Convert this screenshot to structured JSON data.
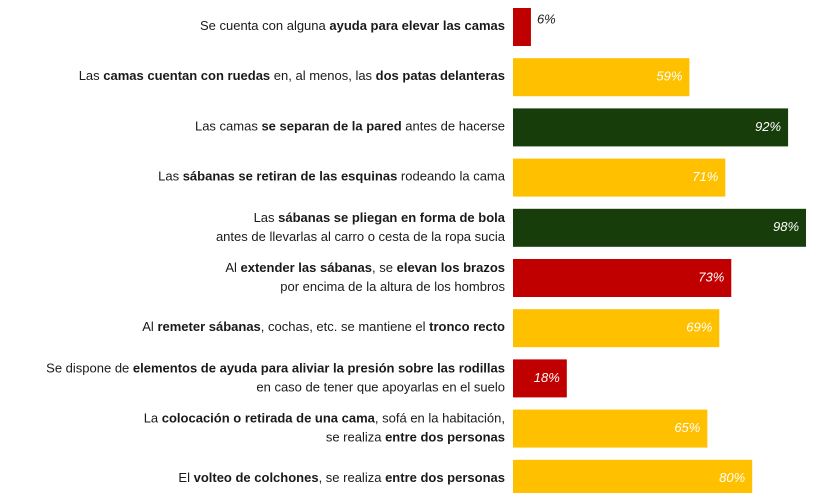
{
  "chart_data": {
    "type": "bar",
    "orientation": "horizontal",
    "categories": [
      [
        [
          {
            "text": "Se cuenta con alguna "
          },
          {
            "text": "ayuda para elevar las camas",
            "bold": true
          }
        ]
      ],
      [
        [
          {
            "text": "Las "
          },
          {
            "text": "camas cuentan con ruedas",
            "bold": true
          },
          {
            "text": " en, al menos, las "
          },
          {
            "text": "dos patas delanteras",
            "bold": true
          }
        ]
      ],
      [
        [
          {
            "text": "Las camas "
          },
          {
            "text": "se separan de la pared",
            "bold": true
          },
          {
            "text": " antes de hacerse"
          }
        ]
      ],
      [
        [
          {
            "text": "Las "
          },
          {
            "text": "sábanas se retiran de las esquinas",
            "bold": true
          },
          {
            "text": " rodeando la cama"
          }
        ]
      ],
      [
        [
          {
            "text": "Las "
          },
          {
            "text": "sábanas se pliegan en forma de bola",
            "bold": true
          }
        ],
        [
          {
            "text": "antes de llevarlas al carro o cesta de la ropa sucia"
          }
        ]
      ],
      [
        [
          {
            "text": "Al "
          },
          {
            "text": "extender las sábanas",
            "bold": true
          },
          {
            "text": ", se "
          },
          {
            "text": "elevan los brazos",
            "bold": true
          }
        ],
        [
          {
            "text": "por encima de la altura de los hombros"
          }
        ]
      ],
      [
        [
          {
            "text": "Al "
          },
          {
            "text": "remeter sábanas",
            "bold": true
          },
          {
            "text": ", cochas, etc. se mantiene el "
          },
          {
            "text": "tronco recto",
            "bold": true
          }
        ]
      ],
      [
        [
          {
            "text": "Se dispone de "
          },
          {
            "text": "elementos de ayuda para aliviar la presión sobre las rodillas",
            "bold": true
          }
        ],
        [
          {
            "text": "en caso de tener que apoyarlas en el suelo"
          }
        ]
      ],
      [
        [
          {
            "text": "La "
          },
          {
            "text": "colocación o retirada de una cama",
            "bold": true
          },
          {
            "text": ", sofá en la habitación,"
          }
        ],
        [
          {
            "text": "se realiza "
          },
          {
            "text": "entre dos personas",
            "bold": true
          }
        ]
      ],
      [
        [
          {
            "text": "El "
          },
          {
            "text": "volteo de colchones",
            "bold": true
          },
          {
            "text": ", se realiza "
          },
          {
            "text": "entre dos personas",
            "bold": true
          }
        ]
      ]
    ],
    "values": [
      6,
      59,
      92,
      71,
      98,
      73,
      69,
      18,
      65,
      80
    ],
    "value_labels": [
      "6%",
      "59%",
      "92%",
      "71%",
      "98%",
      "73%",
      "69%",
      "18%",
      "65%",
      "80%"
    ],
    "colors": [
      "#c00000",
      "#ffc000",
      "#173d0a",
      "#ffc000",
      "#173d0a",
      "#c00000",
      "#ffc000",
      "#c00000",
      "#ffc000",
      "#ffc000"
    ],
    "xlim": [
      0,
      100
    ]
  }
}
